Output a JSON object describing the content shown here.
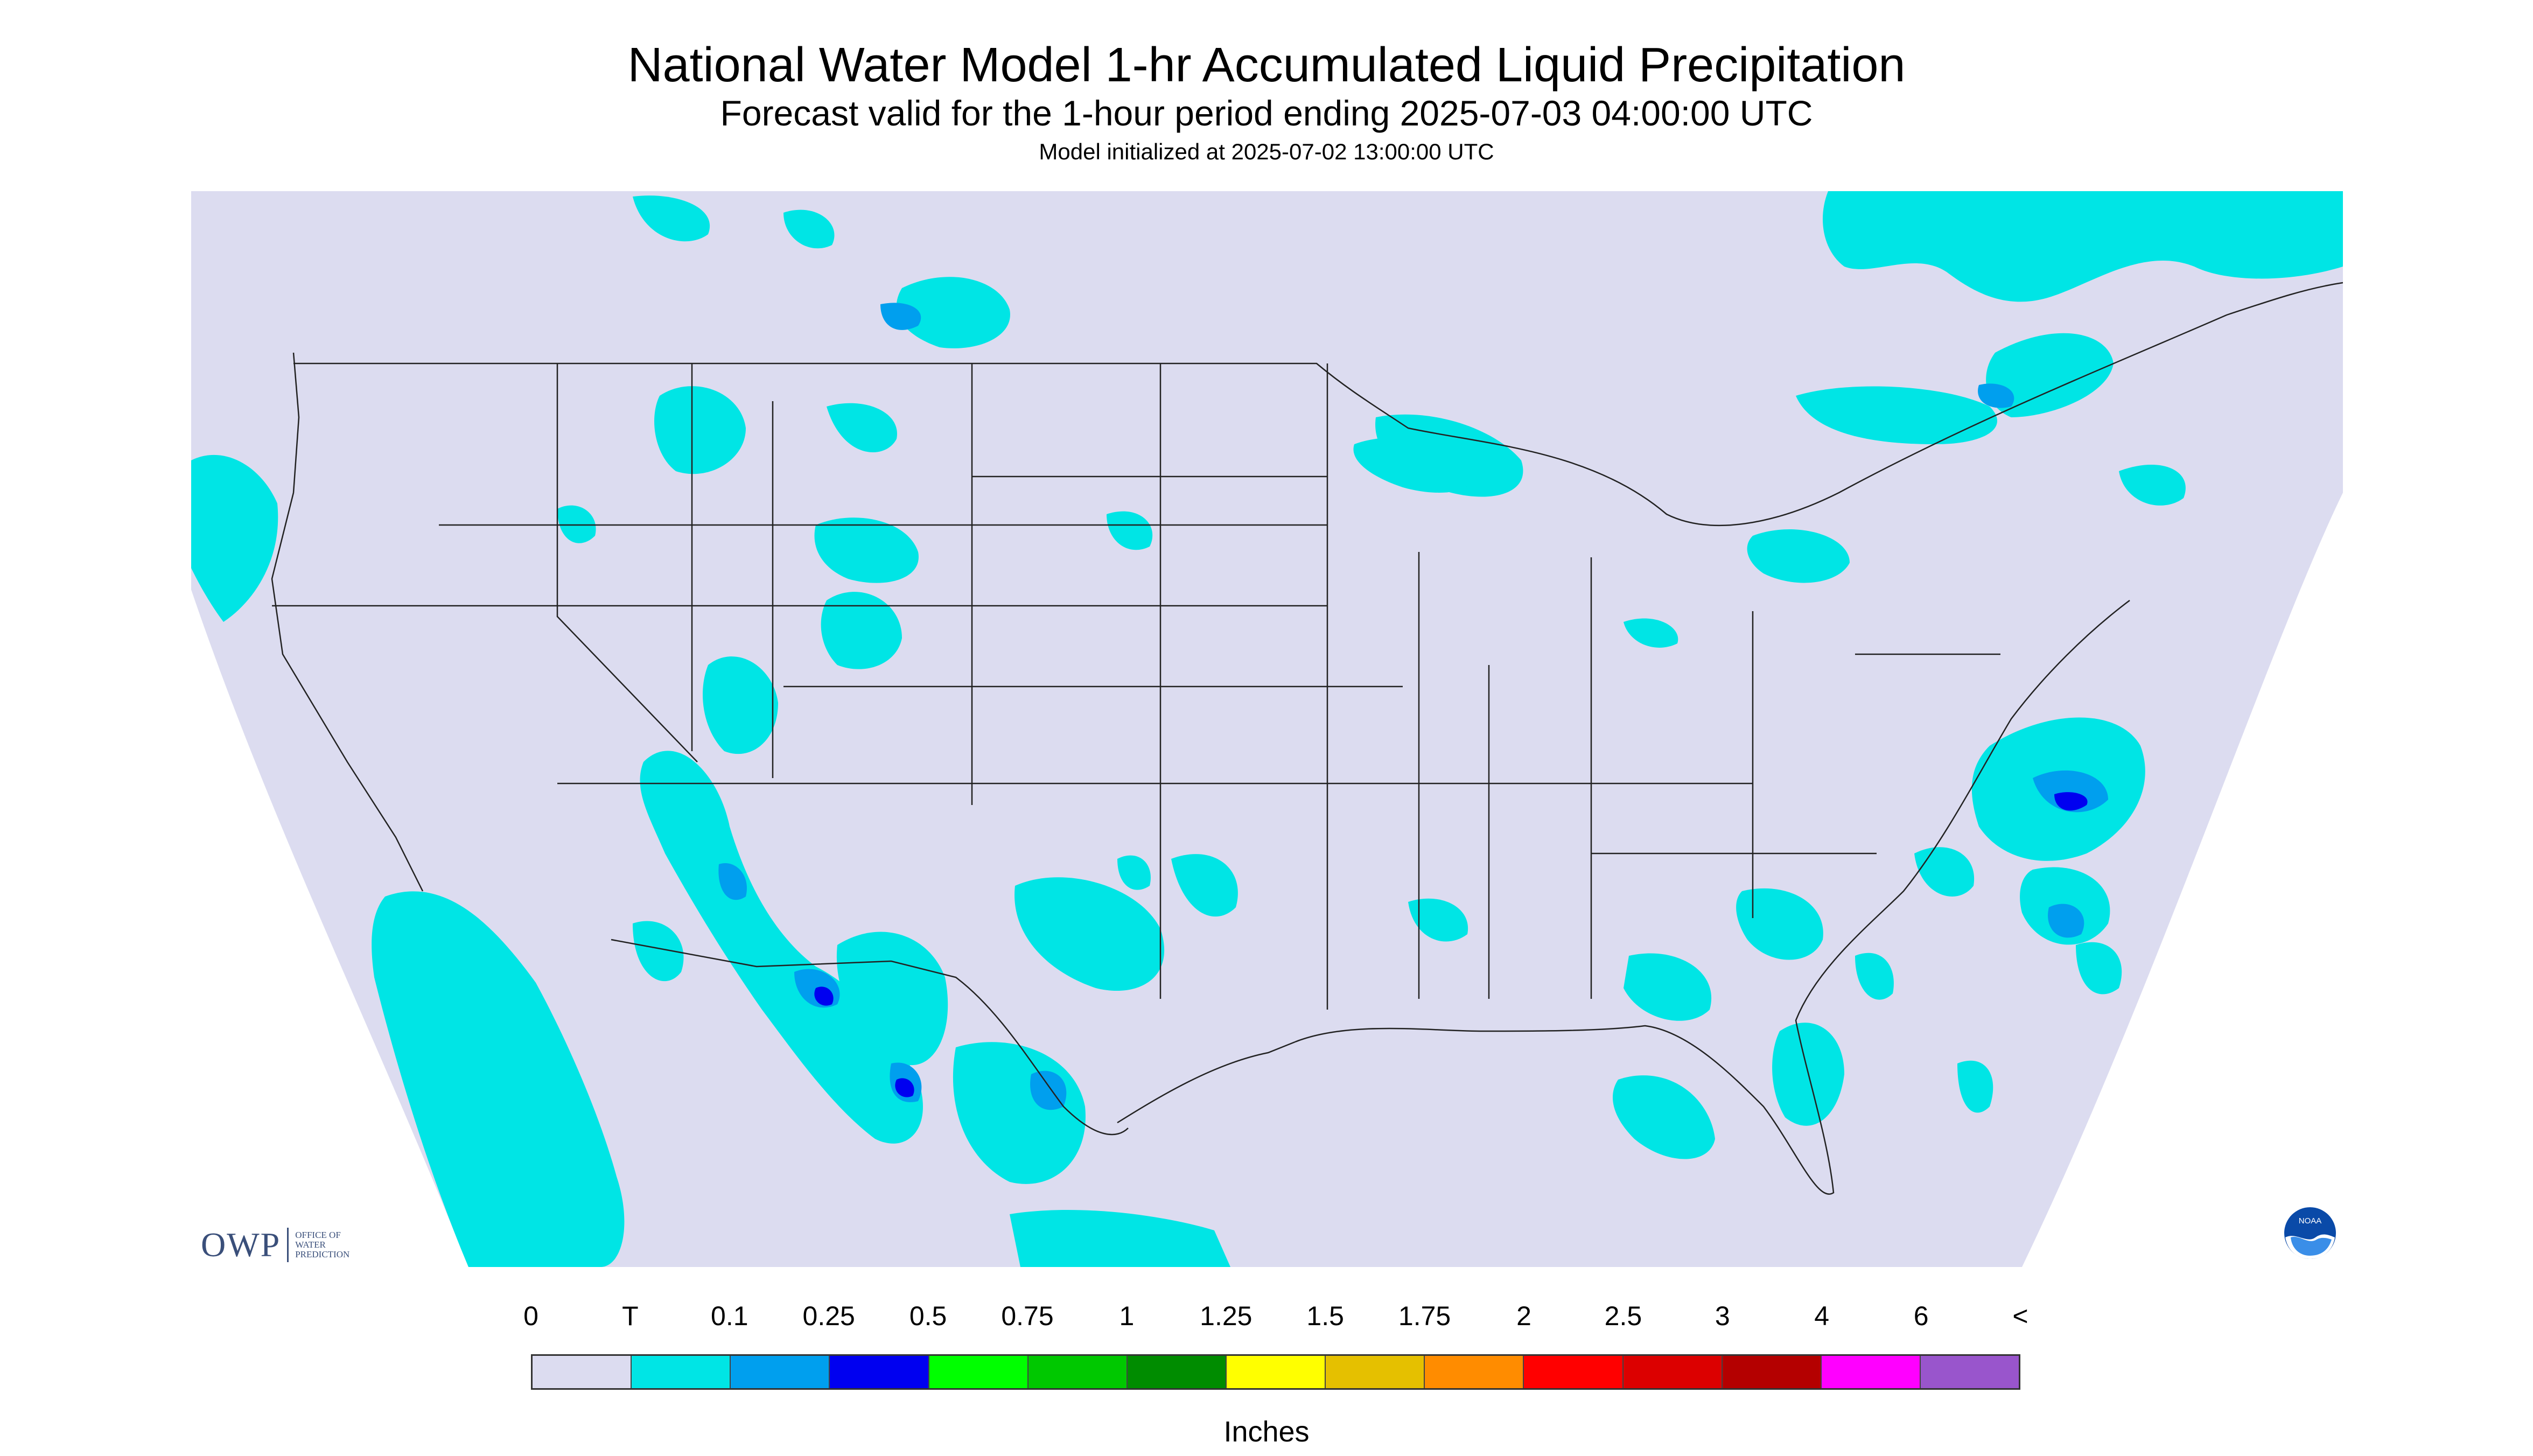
{
  "titles": {
    "main": "National Water Model 1-hr Accumulated Liquid Precipitation",
    "forecast": "Forecast valid for the 1-hour period ending 2025-07-03 04:00:00 UTC",
    "init": "Model initialized at 2025-07-02 13:00:00 UTC"
  },
  "legend": {
    "labels": [
      "0",
      "T",
      "0.1",
      "0.25",
      "0.5",
      "0.75",
      "1",
      "1.25",
      "1.5",
      "1.75",
      "2",
      "2.5",
      "3",
      "4",
      "6",
      "<"
    ],
    "colors": [
      "#dcdcf0",
      "#00e5e5",
      "#009fee",
      "#0000f0",
      "#00ff00",
      "#00c800",
      "#008c00",
      "#ffff00",
      "#e5c000",
      "#ff8c00",
      "#ff0000",
      "#dc0000",
      "#b40000",
      "#ff00ff",
      "#9955cc"
    ],
    "units": "Inches"
  },
  "map": {
    "background_color": "#dcdcf0",
    "precip_colors": {
      "trace": "#00e5e5",
      "light": "#009fee",
      "moderate": "#0000f0"
    }
  },
  "logos": {
    "owp_mark": "OWP",
    "owp_text": [
      "OFFICE OF",
      "WATER",
      "PREDICTION"
    ],
    "noaa_text": "NOAA"
  }
}
